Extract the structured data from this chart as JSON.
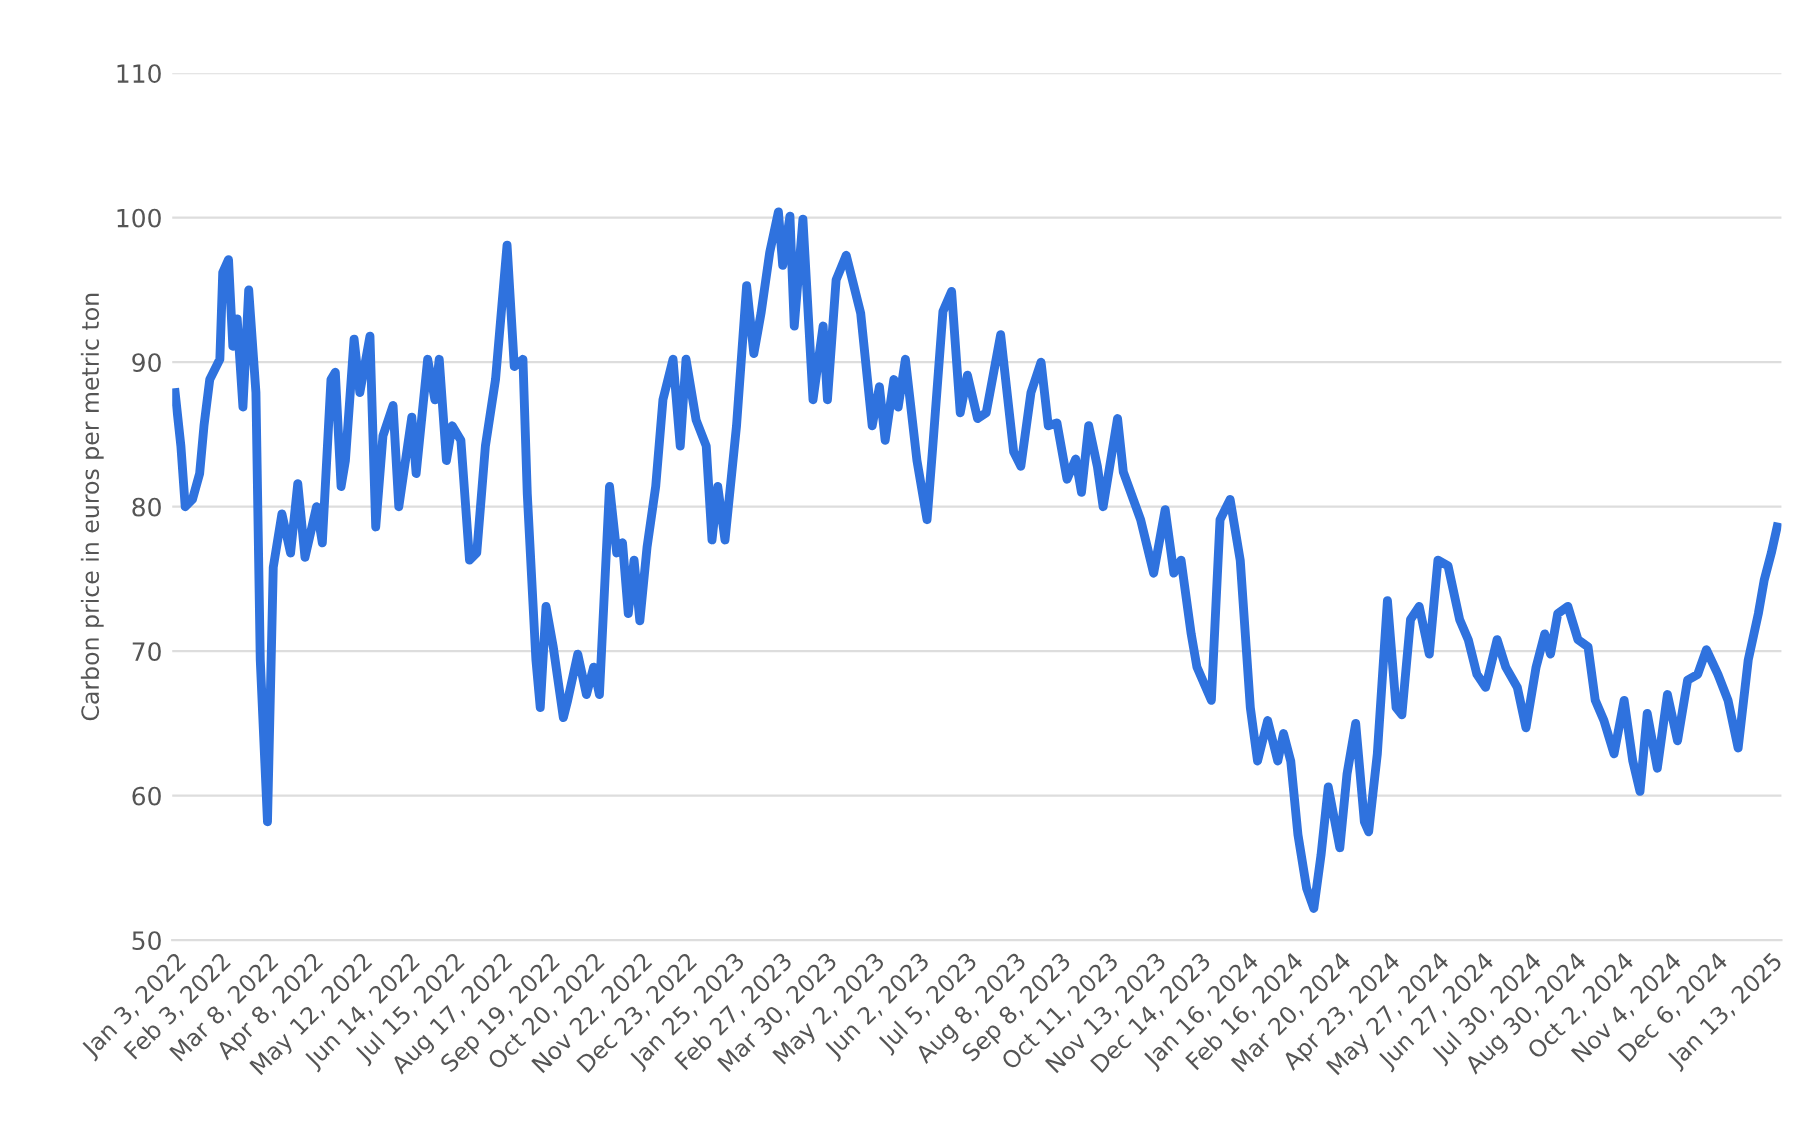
{
  "chart_data": {
    "type": "line",
    "ylabel": "Carbon price in euros per metric ton",
    "xlim": [
      "2022-01-01",
      "2025-01-20"
    ],
    "ylim": [
      50,
      110
    ],
    "yticks": [
      50,
      60,
      70,
      80,
      90,
      100,
      110
    ],
    "xticks": [
      {
        "value": "2022-01-03",
        "label": "Jan 3, 2022"
      },
      {
        "value": "2022-02-03",
        "label": "Feb 3, 2022"
      },
      {
        "value": "2022-03-08",
        "label": "Mar 8, 2022"
      },
      {
        "value": "2022-04-08",
        "label": "Apr 8, 2022"
      },
      {
        "value": "2022-05-12",
        "label": "May 12, 2022"
      },
      {
        "value": "2022-06-14",
        "label": "Jun 14, 2022"
      },
      {
        "value": "2022-07-15",
        "label": "Jul 15, 2022"
      },
      {
        "value": "2022-08-17",
        "label": "Aug 17, 2022"
      },
      {
        "value": "2022-09-19",
        "label": "Sep 19, 2022"
      },
      {
        "value": "2022-10-20",
        "label": "Oct 20, 2022"
      },
      {
        "value": "2022-11-22",
        "label": "Nov 22, 2022"
      },
      {
        "value": "2022-12-23",
        "label": "Dec 23, 2022"
      },
      {
        "value": "2023-01-25",
        "label": "Jan 25, 2023"
      },
      {
        "value": "2023-02-27",
        "label": "Feb 27, 2023"
      },
      {
        "value": "2023-03-30",
        "label": "Mar 30, 2023"
      },
      {
        "value": "2023-05-02",
        "label": "May 2, 2023"
      },
      {
        "value": "2023-06-02",
        "label": "Jun 2, 2023"
      },
      {
        "value": "2023-07-05",
        "label": "Jul 5, 2023"
      },
      {
        "value": "2023-08-08",
        "label": "Aug 8, 2023"
      },
      {
        "value": "2023-09-08",
        "label": "Sep 8, 2023"
      },
      {
        "value": "2023-10-11",
        "label": "Oct 11, 2023"
      },
      {
        "value": "2023-11-13",
        "label": "Nov 13, 2023"
      },
      {
        "value": "2023-12-14",
        "label": "Dec 14, 2023"
      },
      {
        "value": "2024-01-16",
        "label": "Jan 16, 2024"
      },
      {
        "value": "2024-02-16",
        "label": "Feb 16, 2024"
      },
      {
        "value": "2024-03-20",
        "label": "Mar 20, 2024"
      },
      {
        "value": "2024-04-23",
        "label": "Apr 23, 2024"
      },
      {
        "value": "2024-05-27",
        "label": "May 27, 2024"
      },
      {
        "value": "2024-06-27",
        "label": "Jun 27, 2024"
      },
      {
        "value": "2024-07-30",
        "label": "Jul 30, 2024"
      },
      {
        "value": "2024-08-30",
        "label": "Aug 30, 2024"
      },
      {
        "value": "2024-10-02",
        "label": "Oct 2, 2024"
      },
      {
        "value": "2024-11-04",
        "label": "Nov 4, 2024"
      },
      {
        "value": "2024-12-06",
        "label": "Dec 6, 2024"
      },
      {
        "value": "2025-01-13",
        "label": "Jan 13, 2025"
      }
    ],
    "grid": "y",
    "legend": false,
    "marker": "none",
    "line_style": "solid",
    "series": [
      {
        "color": "#2f72de",
        "x": [
          "2022-01-03",
          "2022-01-07",
          "2022-01-10",
          "2022-01-15",
          "2022-01-20",
          "2022-01-23",
          "2022-01-27",
          "2022-02-03",
          "2022-02-05",
          "2022-02-09",
          "2022-02-12",
          "2022-02-15",
          "2022-02-19",
          "2022-02-23",
          "2022-02-28",
          "2022-03-03",
          "2022-03-08",
          "2022-03-12",
          "2022-03-18",
          "2022-03-24",
          "2022-03-29",
          "2022-04-03",
          "2022-04-11",
          "2022-04-15",
          "2022-04-21",
          "2022-04-24",
          "2022-04-28",
          "2022-05-01",
          "2022-05-07",
          "2022-05-11",
          "2022-05-18",
          "2022-05-22",
          "2022-05-27",
          "2022-06-03",
          "2022-06-07",
          "2022-06-16",
          "2022-06-19",
          "2022-06-27",
          "2022-07-02",
          "2022-07-05",
          "2022-07-10",
          "2022-07-14",
          "2022-07-20",
          "2022-07-26",
          "2022-07-31",
          "2022-08-06",
          "2022-08-13",
          "2022-08-21",
          "2022-08-26",
          "2022-09-01",
          "2022-09-04",
          "2022-09-10",
          "2022-09-13",
          "2022-09-17",
          "2022-09-22",
          "2022-09-29",
          "2022-10-02",
          "2022-10-09",
          "2022-10-15",
          "2022-10-20",
          "2022-10-24",
          "2022-10-31",
          "2022-11-05",
          "2022-11-09",
          "2022-11-13",
          "2022-11-17",
          "2022-11-21",
          "2022-11-26",
          "2022-12-02",
          "2022-12-07",
          "2022-12-14",
          "2022-12-19",
          "2022-12-23",
          "2022-12-30",
          "2023-01-06",
          "2023-01-10",
          "2023-01-14",
          "2023-01-19",
          "2023-01-27",
          "2023-02-03",
          "2023-02-08",
          "2023-02-13",
          "2023-02-19",
          "2023-02-25",
          "2023-02-28",
          "2023-03-05",
          "2023-03-08",
          "2023-03-14",
          "2023-03-21",
          "2023-03-28",
          "2023-03-31",
          "2023-04-06",
          "2023-04-13",
          "2023-04-23",
          "2023-05-01",
          "2023-05-06",
          "2023-05-10",
          "2023-05-16",
          "2023-05-19",
          "2023-05-24",
          "2023-06-01",
          "2023-06-08",
          "2023-06-12",
          "2023-06-19",
          "2023-06-25",
          "2023-07-01",
          "2023-07-06",
          "2023-07-13",
          "2023-07-19",
          "2023-07-29",
          "2023-08-07",
          "2023-08-12",
          "2023-08-19",
          "2023-08-26",
          "2023-08-31",
          "2023-09-06",
          "2023-09-13",
          "2023-09-19",
          "2023-09-23",
          "2023-09-28",
          "2023-10-04",
          "2023-10-08",
          "2023-10-18",
          "2023-10-22",
          "2023-11-03",
          "2023-11-12",
          "2023-11-20",
          "2023-11-26",
          "2023-12-01",
          "2023-12-08",
          "2023-12-12",
          "2023-12-22",
          "2023-12-28",
          "2024-01-04",
          "2024-01-11",
          "2024-01-18",
          "2024-01-23",
          "2024-01-30",
          "2024-02-06",
          "2024-02-10",
          "2024-02-15",
          "2024-02-20",
          "2024-02-26",
          "2024-03-02",
          "2024-03-07",
          "2024-03-12",
          "2024-03-20",
          "2024-03-25",
          "2024-03-31",
          "2024-04-06",
          "2024-04-09",
          "2024-04-15",
          "2024-04-22",
          "2024-04-28",
          "2024-05-02",
          "2024-05-08",
          "2024-05-14",
          "2024-05-21",
          "2024-05-27",
          "2024-06-03",
          "2024-06-11",
          "2024-06-17",
          "2024-06-23",
          "2024-06-29",
          "2024-07-07",
          "2024-07-13",
          "2024-07-21",
          "2024-07-27",
          "2024-08-03",
          "2024-08-09",
          "2024-08-13",
          "2024-08-18",
          "2024-08-25",
          "2024-09-01",
          "2024-09-08",
          "2024-09-13",
          "2024-09-19",
          "2024-09-26",
          "2024-10-03",
          "2024-10-09",
          "2024-10-14",
          "2024-10-19",
          "2024-10-26",
          "2024-11-02",
          "2024-11-09",
          "2024-11-16",
          "2024-11-23",
          "2024-11-29",
          "2024-12-07",
          "2024-12-14",
          "2024-12-21",
          "2024-12-28",
          "2025-01-04",
          "2025-01-08",
          "2025-01-13",
          "2025-01-17"
        ],
        "values": [
          87.9,
          84.2,
          80,
          80.5,
          82.3,
          85.6,
          88.8,
          90.2,
          96.2,
          97.1,
          91.1,
          93,
          86.9,
          95,
          87.9,
          69.4,
          58.2,
          75.8,
          79.5,
          76.8,
          81.6,
          76.5,
          80,
          77.5,
          88.8,
          89.3,
          81.4,
          83.2,
          91.6,
          87.9,
          91.8,
          78.6,
          84.9,
          87,
          80,
          86.2,
          82.3,
          90.2,
          87.4,
          90.2,
          83.2,
          85.6,
          84.6,
          76.3,
          76.8,
          84.2,
          88.8,
          98.1,
          89.7,
          90.2,
          80.9,
          69.4,
          66.1,
          73.1,
          70.3,
          65.4,
          66.6,
          69.8,
          67,
          68.9,
          67,
          81.4,
          76.8,
          77.5,
          72.6,
          76.3,
          72.1,
          77.2,
          81.4,
          87.4,
          90.2,
          84.2,
          90.2,
          86,
          84.2,
          77.7,
          81.4,
          77.7,
          85.6,
          95.3,
          90.6,
          93.4,
          97.6,
          100.4,
          96.7,
          100.1,
          92.5,
          99.9,
          87.4,
          92.5,
          87.4,
          95.7,
          97.4,
          93.4,
          85.6,
          88.3,
          84.6,
          88.8,
          86.9,
          90.2,
          83.2,
          79.1,
          84.2,
          93.5,
          94.9,
          86.5,
          89.1,
          86.1,
          86.5,
          91.9,
          83.8,
          82.8,
          87.9,
          90,
          85.6,
          85.8,
          81.9,
          83.3,
          81,
          85.6,
          82.8,
          80,
          86.1,
          82.4,
          79.1,
          75.4,
          79.8,
          75.4,
          76.3,
          71.2,
          68.9,
          66.6,
          79.1,
          80.5,
          76.3,
          66.1,
          62.4,
          65.2,
          62.4,
          64.3,
          62.4,
          57.3,
          53.6,
          52.2,
          55.9,
          60.6,
          56.4,
          61.5,
          65,
          58.2,
          57.5,
          62.9,
          73.5,
          66.1,
          65.6,
          72.2,
          73.1,
          69.8,
          76.3,
          75.9,
          72.2,
          70.8,
          68.4,
          67.5,
          70.8,
          68.9,
          67.5,
          64.7,
          68.9,
          71.2,
          69.8,
          72.6,
          73.1,
          70.8,
          70.3,
          66.6,
          65.2,
          62.9,
          66.6,
          62.4,
          60.3,
          65.7,
          61.9,
          67,
          63.8,
          68,
          68.4,
          70.1,
          68.4,
          66.6,
          63.3,
          69.4,
          72.6,
          74.9,
          76.8,
          78.6
        ]
      }
    ]
  }
}
